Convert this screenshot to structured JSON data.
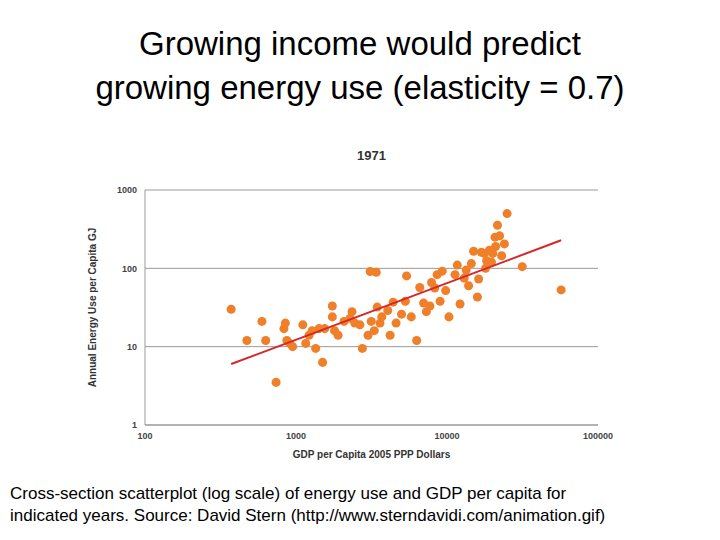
{
  "slide": {
    "title": [
      "Growing income would predict",
      "growing energy use (elasticity = 0.7)"
    ],
    "caption": [
      "Cross-section scatterplot (log scale) of energy use and GDP per capita for",
      "indicated years.  Source: David Stern (http://www.sterndavidi.com/animation.gif)"
    ]
  },
  "chart_data": {
    "type": "scatter",
    "title": "1971",
    "x_label": "GDP per Capita 2005 PPP Dollars",
    "y_label": "Annual Energy Use per Capita GJ",
    "log": true,
    "grid": true,
    "xlim": [
      100,
      100000
    ],
    "xticks": [
      100,
      1000,
      10000,
      100000
    ],
    "ylim": [
      1,
      1000
    ],
    "yticks": [
      1,
      10,
      100,
      1000
    ],
    "series": [
      {
        "type": "scatter",
        "color": "#f07f2a",
        "marker": "circle",
        "x": [
          372,
          473,
          595,
          630,
          738,
          832,
          850,
          870,
          910,
          950,
          1110,
          1160,
          1220,
          1280,
          1350,
          1420,
          1500,
          1550,
          1740,
          1740,
          1800,
          1900,
          2080,
          2280,
          2350,
          2450,
          2650,
          2750,
          3000,
          3100,
          3400,
          3150,
          3300,
          3450,
          3600,
          3700,
          4050,
          4200,
          4400,
          4600,
          5000,
          5300,
          5400,
          5800,
          6300,
          6600,
          7000,
          7300,
          7700,
          7900,
          8300,
          8600,
          9000,
          9300,
          9800,
          10300,
          11300,
          11700,
          12200,
          13000,
          13400,
          13900,
          14500,
          15000,
          15900,
          16200,
          16900,
          17700,
          18000,
          18300,
          19100,
          19700,
          20100,
          20800,
          21000,
          21600,
          22300,
          23000,
          24000,
          25000,
          31500,
          57000
        ],
        "values": [
          30,
          12,
          21,
          12,
          3.5,
          17,
          20,
          12,
          11,
          10,
          19,
          11,
          14,
          16,
          9.5,
          17,
          6.3,
          17,
          24,
          33,
          16,
          14,
          21,
          23,
          28,
          20,
          19,
          9.5,
          14,
          91,
          89,
          21,
          16,
          32,
          20,
          24,
          29,
          14,
          37,
          20,
          26,
          38,
          80,
          24,
          12,
          57,
          36,
          28,
          33,
          66,
          56,
          83,
          38,
          92,
          52,
          24,
          83,
          110,
          35,
          75,
          95,
          60,
          115,
          165,
          43,
          73,
          160,
          155,
          100,
          125,
          170,
          120,
          155,
          250,
          190,
          355,
          260,
          145,
          205,
          500,
          105,
          53
        ]
      },
      {
        "type": "line",
        "color": "#d62728",
        "line_style": "solid",
        "x": [
          372,
          57000
        ],
        "values": [
          6,
          228
        ]
      }
    ]
  }
}
